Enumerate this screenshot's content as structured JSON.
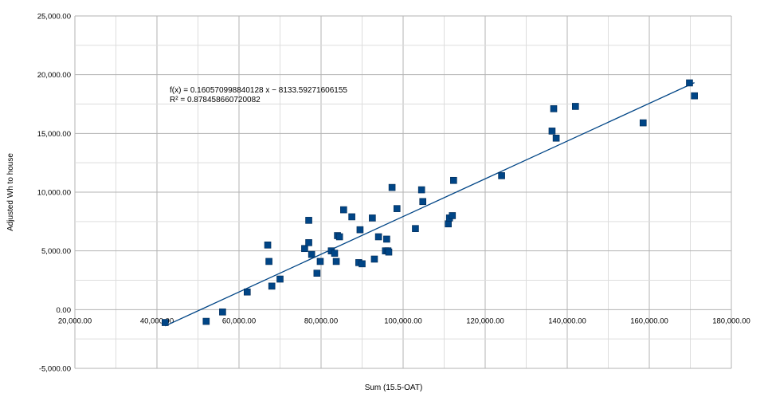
{
  "chart_data": {
    "type": "scatter",
    "title": "",
    "xlabel": "Sum (15.5-OAT)",
    "ylabel": "Adjusted Wh to house",
    "xlim": [
      20000,
      180000
    ],
    "ylim": [
      -5000,
      25000
    ],
    "x_ticks": [
      "20,000.00",
      "40,000.00",
      "60,000.00",
      "80,000.00",
      "100,000.00",
      "120,000.00",
      "140,000.00",
      "160,000.00",
      "180,000.00"
    ],
    "y_ticks": [
      "-5,000.00",
      "0.00",
      "5,000.00",
      "10,000.00",
      "15,000.00",
      "20,000.00",
      "25,000.00"
    ],
    "grid": true,
    "series_color": "#004586",
    "trendline_color": "#004586",
    "trendline": {
      "slope": 0.160570998840128,
      "intercept": -8133.59271606155,
      "x_range": [
        42000,
        171000
      ]
    },
    "annotations": {
      "equation": "f(x) = 0.160570998840128 x − 8133.59271606155",
      "r_squared": "R² = 0.878458660720082"
    },
    "points": [
      [
        42000,
        -1100
      ],
      [
        52000,
        -1000
      ],
      [
        56000,
        -200
      ],
      [
        62000,
        1500
      ],
      [
        67000,
        5500
      ],
      [
        67300,
        4100
      ],
      [
        68000,
        2000
      ],
      [
        70000,
        2600
      ],
      [
        76000,
        5200
      ],
      [
        77000,
        7600
      ],
      [
        77000,
        5700
      ],
      [
        77700,
        4700
      ],
      [
        79000,
        3100
      ],
      [
        79800,
        4100
      ],
      [
        82500,
        5000
      ],
      [
        83300,
        4800
      ],
      [
        83700,
        4100
      ],
      [
        84000,
        6300
      ],
      [
        84500,
        6200
      ],
      [
        85500,
        8500
      ],
      [
        87500,
        7900
      ],
      [
        89200,
        4000
      ],
      [
        89500,
        6800
      ],
      [
        90000,
        3900
      ],
      [
        92500,
        7800
      ],
      [
        93000,
        4300
      ],
      [
        94000,
        6200
      ],
      [
        95700,
        5000
      ],
      [
        96000,
        6000
      ],
      [
        96300,
        5000
      ],
      [
        96500,
        4900
      ],
      [
        97300,
        10400
      ],
      [
        98500,
        8600
      ],
      [
        103000,
        6900
      ],
      [
        104500,
        10200
      ],
      [
        104800,
        9200
      ],
      [
        111000,
        7300
      ],
      [
        111300,
        7800
      ],
      [
        112000,
        8000
      ],
      [
        112300,
        11000
      ],
      [
        124000,
        11400
      ],
      [
        136300,
        15200
      ],
      [
        136700,
        17100
      ],
      [
        137300,
        14600
      ],
      [
        142000,
        17300
      ],
      [
        158500,
        15900
      ],
      [
        169800,
        19300
      ],
      [
        171000,
        18200
      ]
    ]
  }
}
